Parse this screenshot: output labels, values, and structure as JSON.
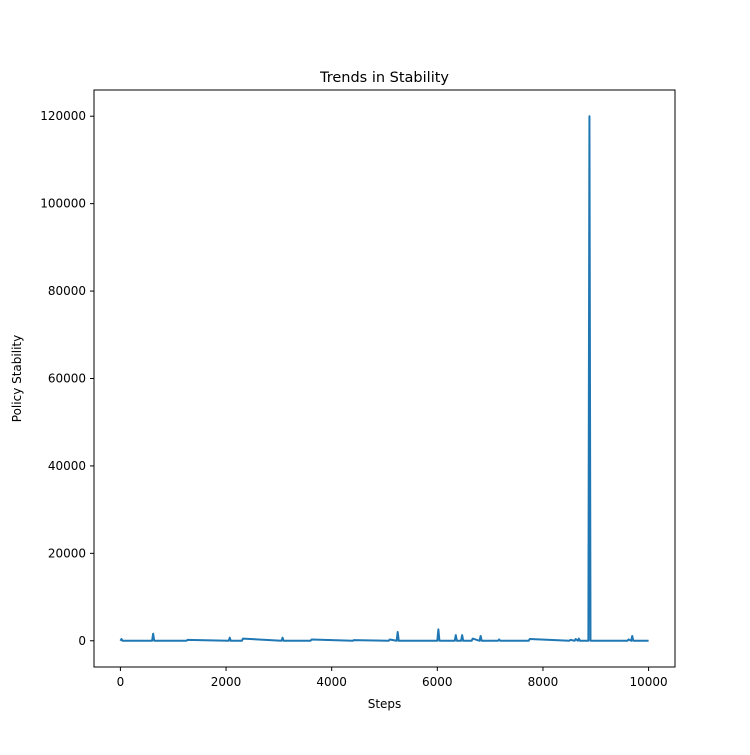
{
  "chart_data": {
    "type": "line",
    "title": "Trends in Stability",
    "xlabel": "Steps",
    "ylabel": "Policy Stability",
    "xlim": [
      -500,
      10500
    ],
    "ylim": [
      -6000,
      126000
    ],
    "xticks": [
      0,
      2000,
      4000,
      6000,
      8000,
      10000
    ],
    "yticks": [
      0,
      20000,
      40000,
      60000,
      80000,
      100000,
      120000
    ],
    "xtick_labels": [
      "0",
      "2000",
      "4000",
      "6000",
      "8000",
      "10000"
    ],
    "ytick_labels": [
      "0",
      "20000",
      "40000",
      "60000",
      "80000",
      "100000",
      "120000"
    ],
    "grid": false,
    "series": [
      {
        "color": "#1f77b4",
        "x": [
          0,
          20,
          40,
          600,
          620,
          640,
          1250,
          1270,
          2050,
          2070,
          2090,
          2300,
          2320,
          3050,
          3070,
          3090,
          3600,
          3620,
          4400,
          4420,
          5080,
          5100,
          5230,
          5250,
          5270,
          6000,
          6020,
          6040,
          6330,
          6350,
          6370,
          6450,
          6470,
          6490,
          6650,
          6670,
          6800,
          6820,
          6840,
          7150,
          7170,
          7190,
          7730,
          7750,
          8500,
          8520,
          8600,
          8620,
          8660,
          8680,
          8700,
          8860,
          8880,
          8900,
          9600,
          9620,
          9670,
          9690,
          9710,
          10000
        ],
        "values": [
          0,
          400,
          0,
          0,
          1600,
          0,
          0,
          200,
          0,
          700,
          0,
          0,
          500,
          0,
          700,
          0,
          0,
          300,
          0,
          150,
          0,
          300,
          0,
          2000,
          0,
          0,
          2600,
          0,
          0,
          1300,
          0,
          0,
          1300,
          0,
          0,
          500,
          0,
          1100,
          0,
          0,
          300,
          0,
          0,
          400,
          0,
          200,
          0,
          400,
          0,
          500,
          0,
          0,
          120000,
          0,
          0,
          300,
          0,
          1100,
          0,
          0
        ]
      }
    ]
  }
}
